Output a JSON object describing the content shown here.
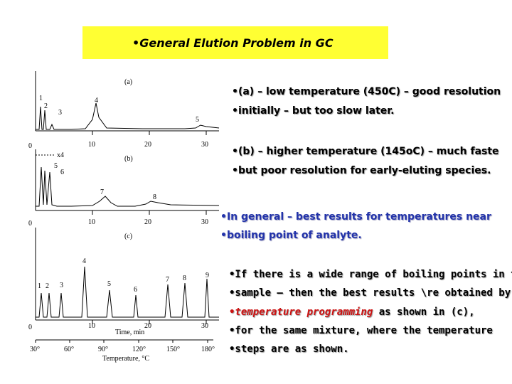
{
  "slide": {
    "title": "•General Elution Problem in GC"
  },
  "chromatograms": {
    "a": {
      "label": "(a)",
      "peaks": [
        "1",
        "2",
        "3",
        "4",
        "5"
      ],
      "ticks": [
        "0",
        "10",
        "20",
        "30"
      ]
    },
    "b": {
      "label": "(b)",
      "x4": "x4",
      "peaks": [
        "5",
        "6",
        "7",
        "8"
      ],
      "ticks": [
        "0",
        "10",
        "20",
        "30"
      ]
    },
    "c": {
      "label": "(c)",
      "peaks": [
        "1",
        "2",
        "3",
        "4",
        "5",
        "6",
        "7",
        "8",
        "9"
      ],
      "ticks": [
        "0",
        "10",
        "20",
        "30"
      ],
      "time_label": "Time, min",
      "temp_ticks": [
        "30°",
        "60°",
        "90°",
        "120°",
        "150°",
        "180°"
      ],
      "temp_label": "Temperature, °C"
    }
  },
  "bullets": {
    "a_line1": "•(a) – low temperature (450C) – good resolution",
    "a_line2": "•initially – but too slow later.",
    "b_line1": "•(b) – higher temperature (145oC) – much faste",
    "b_line2": "•but poor resolution for early-eluting species.",
    "g_line1": "•In general – best results for temperatures near",
    "g_line2": "•boiling point of analyte.",
    "c_line1": "•If there is a wide range of boiling points in the",
    "c_line2": "•sample – then the best results \\re obtained by",
    "c_line3_emph": "•temperature programming",
    "c_line3_rest": " as shown in (c),",
    "c_line4": "•for the same mixture, where the temperature",
    "c_line5": "•steps are as shown."
  },
  "colors": {
    "title_bg": "#ffff33",
    "text": "#000000",
    "blue": "#2233aa",
    "red": "#cc1111"
  }
}
